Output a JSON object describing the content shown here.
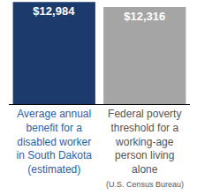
{
  "chart_data": {
    "type": "bar",
    "categories": [
      "Average annual benefit for a disabled worker in South Dakota (estimated)",
      "Federal poverty threshold for a working-age person living alone"
    ],
    "values": [
      12984,
      12316
    ],
    "value_labels": [
      "$12,984",
      "$12,316"
    ],
    "colors": [
      "#1c3a6b",
      "#a5a5a5"
    ],
    "data_labels": true,
    "ylim": [
      0,
      13000
    ],
    "tick_labels": "x",
    "grid": false,
    "annotations": [
      {
        "text": "(U.S. Census Bureau)",
        "x": 1
      }
    ]
  }
}
